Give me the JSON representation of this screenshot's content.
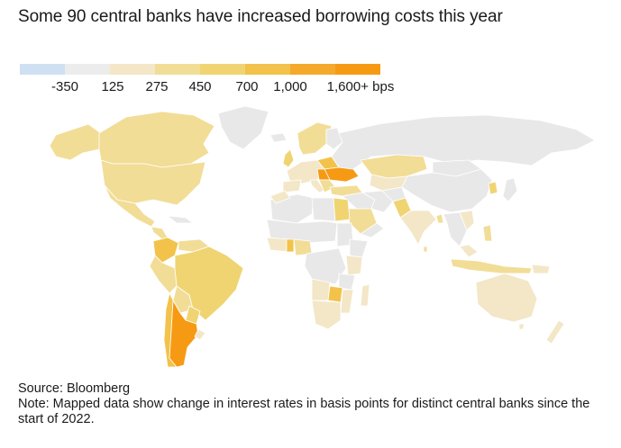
{
  "title": "Some 90 central banks have increased borrowing costs this year",
  "legend": {
    "colors": [
      "#cfe0f2",
      "#ececec",
      "#f3e7c8",
      "#f2dd97",
      "#f0d472",
      "#f2c24a",
      "#f5a92a",
      "#f79a13"
    ],
    "labels": [
      "-350",
      "125",
      "275",
      "450",
      "700",
      "1,000",
      "1,600+ bps"
    ]
  },
  "map_colors": {
    "neutral": "#e8e8e8",
    "low": "#f3e7c8",
    "mid": "#f2dd97",
    "high": "#f0d472",
    "higher": "#f2c24a",
    "top": "#f79a13",
    "border": "#ffffff"
  },
  "footer": {
    "source": "Source: Bloomberg",
    "note": "Note: Mapped data show change in interest rates in basis points for distinct central banks since the start of 2022."
  }
}
